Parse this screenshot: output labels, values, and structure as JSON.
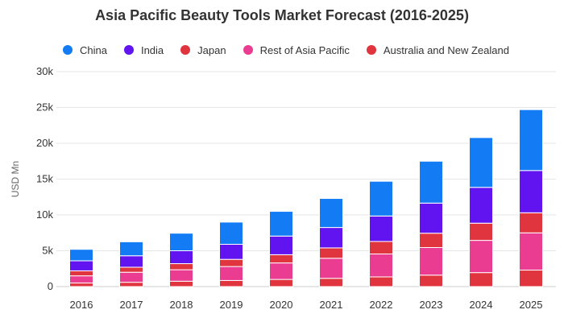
{
  "chart_data": {
    "type": "bar",
    "stacked": true,
    "title": "Asia Pacific Beauty Tools Market Forecast (2016-2025)",
    "xlabel": "",
    "ylabel": "USD Mn",
    "ylim": [
      0,
      30000
    ],
    "y_ticks": [
      0,
      5000,
      10000,
      15000,
      20000,
      25000,
      30000
    ],
    "y_tick_labels": [
      "0",
      "5k",
      "10k",
      "15k",
      "20k",
      "25k",
      "30k"
    ],
    "categories": [
      "2016",
      "2017",
      "2018",
      "2019",
      "2020",
      "2021",
      "2022",
      "2023",
      "2024",
      "2025"
    ],
    "grid": true,
    "legend_position": "top-left",
    "series": [
      {
        "name": "Australia and New Zealand",
        "color": "#e0353f",
        "values": [
          500,
          600,
          750,
          850,
          1000,
          1150,
          1350,
          1600,
          1950,
          2300
        ]
      },
      {
        "name": "Rest of Asia Pacific",
        "color": "#ea3d91",
        "values": [
          1000,
          1400,
          1600,
          1950,
          2300,
          2800,
          3200,
          3850,
          4500,
          5200
        ]
      },
      {
        "name": "Japan",
        "color": "#e0353f",
        "values": [
          700,
          700,
          850,
          1000,
          1150,
          1450,
          1750,
          2000,
          2400,
          2800
        ]
      },
      {
        "name": "India",
        "color": "#6214f0",
        "values": [
          1400,
          1600,
          1800,
          2100,
          2600,
          2850,
          3550,
          4200,
          5000,
          5900
        ]
      },
      {
        "name": "China",
        "color": "#137cf5",
        "values": [
          1600,
          1950,
          2450,
          3100,
          3450,
          4050,
          4850,
          5850,
          6950,
          8500
        ]
      }
    ],
    "legend_order": [
      "China",
      "India",
      "Japan",
      "Rest of Asia Pacific",
      "Australia and New Zealand"
    ]
  }
}
